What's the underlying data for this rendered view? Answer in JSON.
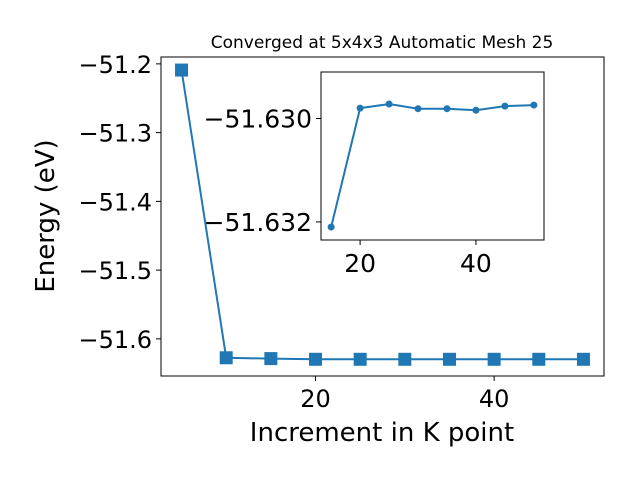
{
  "colors": {
    "series": "#1f77b4",
    "axes": "#000000",
    "background": "#ffffff"
  },
  "chart_data": [
    {
      "type": "line",
      "title": "Converged at 5x4x3 Automatic Mesh 25",
      "xlabel": "Increment in K point",
      "ylabel": "Energy (eV)",
      "xlim": [
        2.7,
        52.3
      ],
      "ylim": [
        -51.654,
        -51.19
      ],
      "xticks": [
        20,
        40
      ],
      "yticks": [
        -51.6,
        -51.5,
        -51.4,
        -51.3,
        -51.2
      ],
      "xtick_labels": [
        "20",
        "40"
      ],
      "ytick_labels": [
        "−51.6",
        "−51.5",
        "−51.4",
        "−51.3",
        "−51.2"
      ],
      "marker": "square",
      "grid": false,
      "series": [
        {
          "x": [
            5,
            10,
            15,
            20,
            25,
            30,
            35,
            40,
            45,
            50
          ],
          "y": [
            -51.209,
            -51.6275,
            -51.6287,
            -51.6297,
            -51.6297,
            -51.6297,
            -51.6297,
            -51.6297,
            -51.6297,
            -51.6297
          ]
        }
      ]
    },
    {
      "type": "line",
      "title": "",
      "xlabel": "",
      "ylabel": "",
      "xlim": [
        13.25,
        51.75
      ],
      "ylim": [
        -51.63235,
        -51.6291
      ],
      "xticks": [
        20,
        40
      ],
      "yticks": [
        -51.632,
        -51.63
      ],
      "xtick_labels": [
        "20",
        "40"
      ],
      "ytick_labels": [
        "−51.632",
        "−51.630"
      ],
      "marker": "circle",
      "grid": false,
      "series": [
        {
          "x": [
            15,
            20,
            25,
            30,
            35,
            40,
            45,
            50
          ],
          "y": [
            -51.6321,
            -51.6298,
            -51.62972,
            -51.62981,
            -51.62981,
            -51.62984,
            -51.62976,
            -51.62974
          ]
        }
      ]
    }
  ]
}
